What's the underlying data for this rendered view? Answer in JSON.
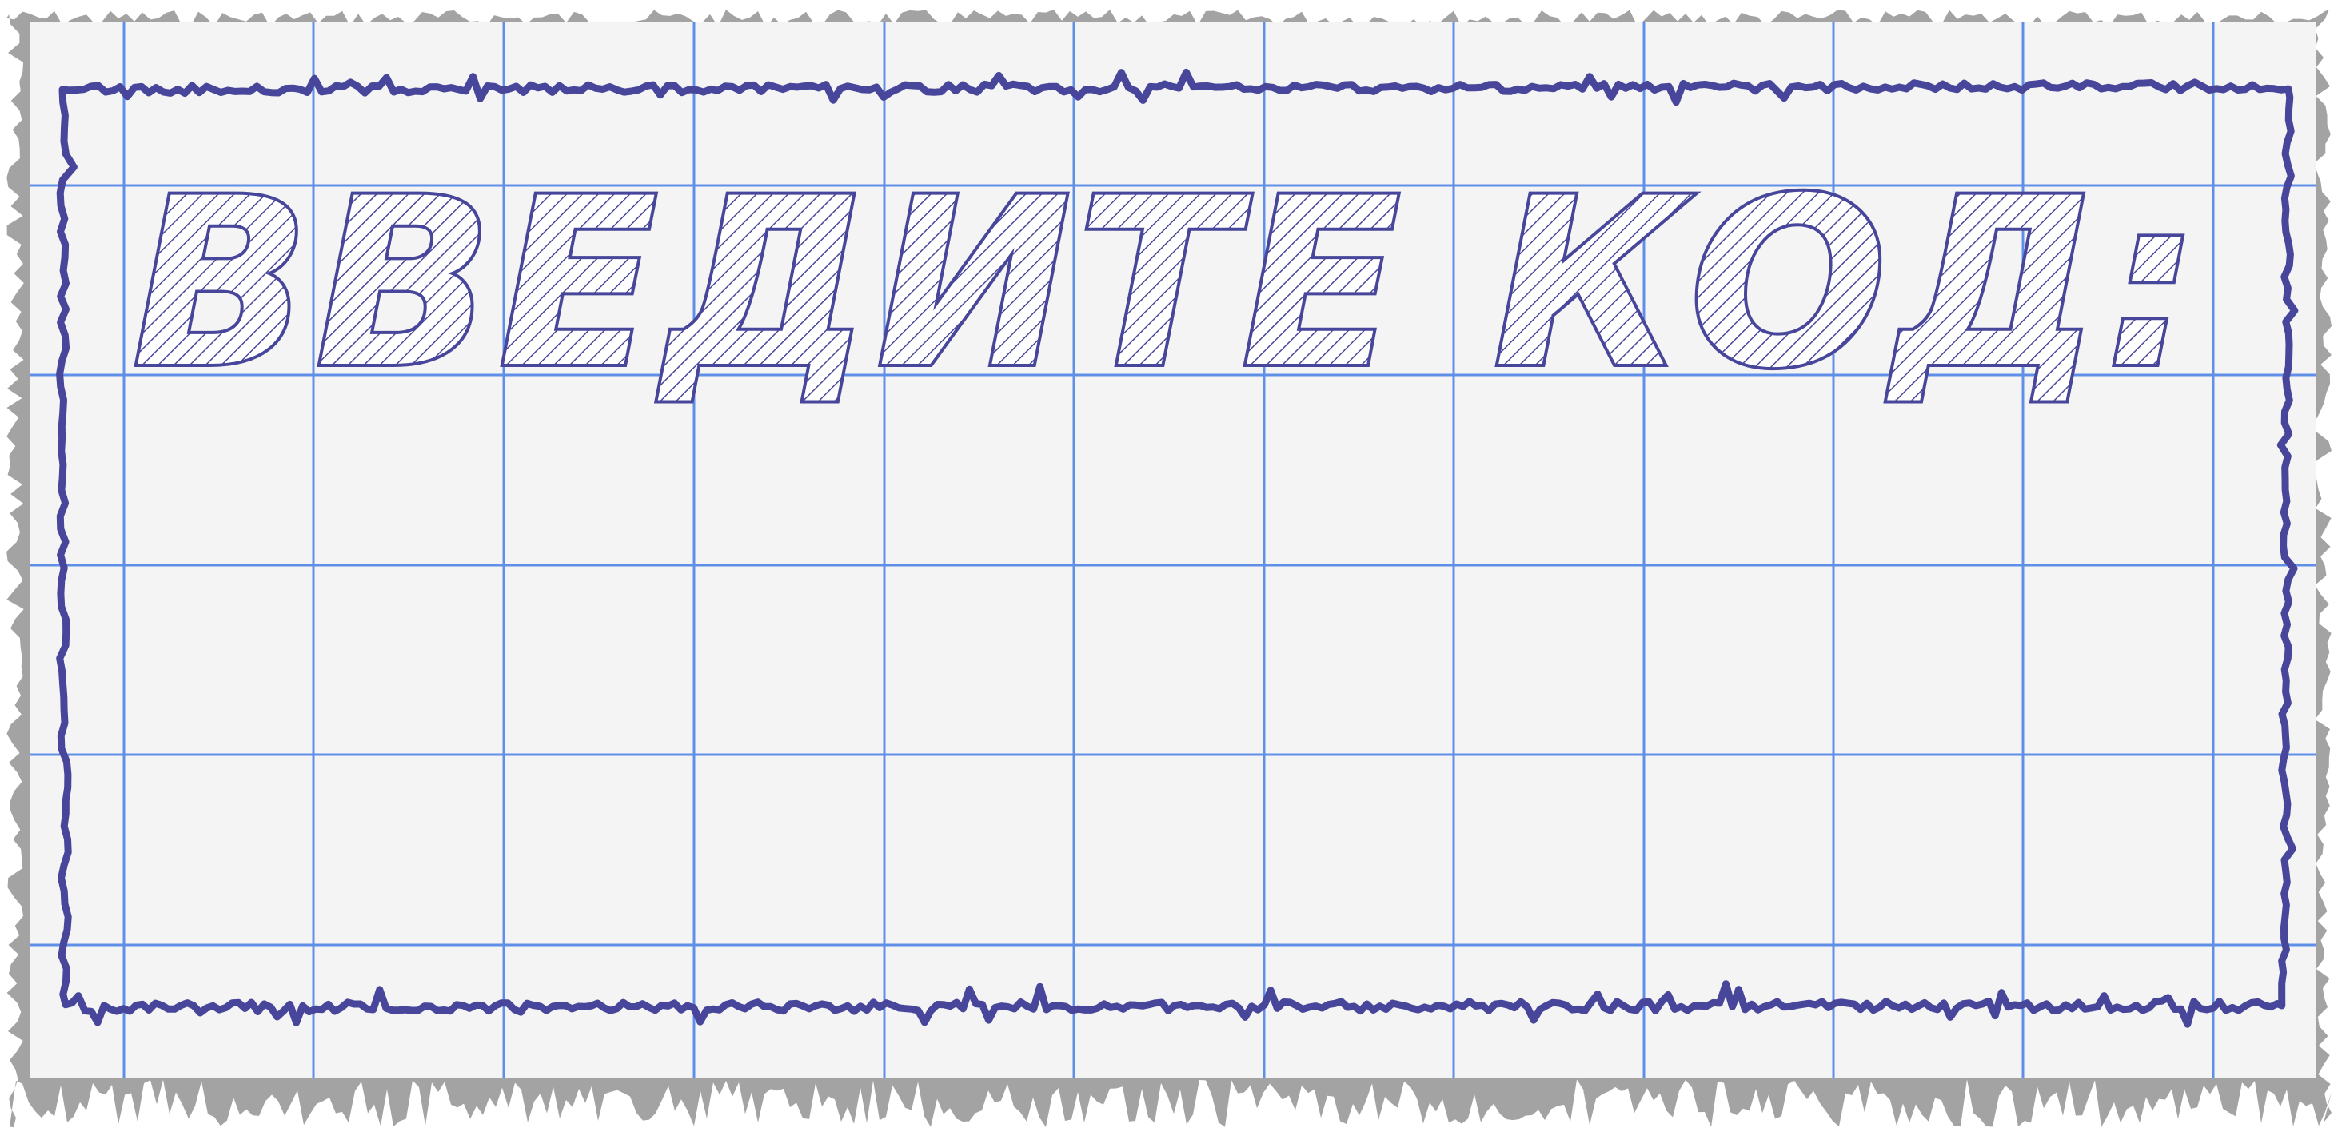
{
  "prompt": {
    "title": "ВВЕДИТЕ КОД:"
  },
  "code_input": {
    "value": ""
  },
  "colors": {
    "paper": "#f4f4f4",
    "grid_line": "#5f8fe6",
    "ink": "#47469a",
    "torn_edge": "#a3a3a3",
    "hatch": "#47469a"
  }
}
